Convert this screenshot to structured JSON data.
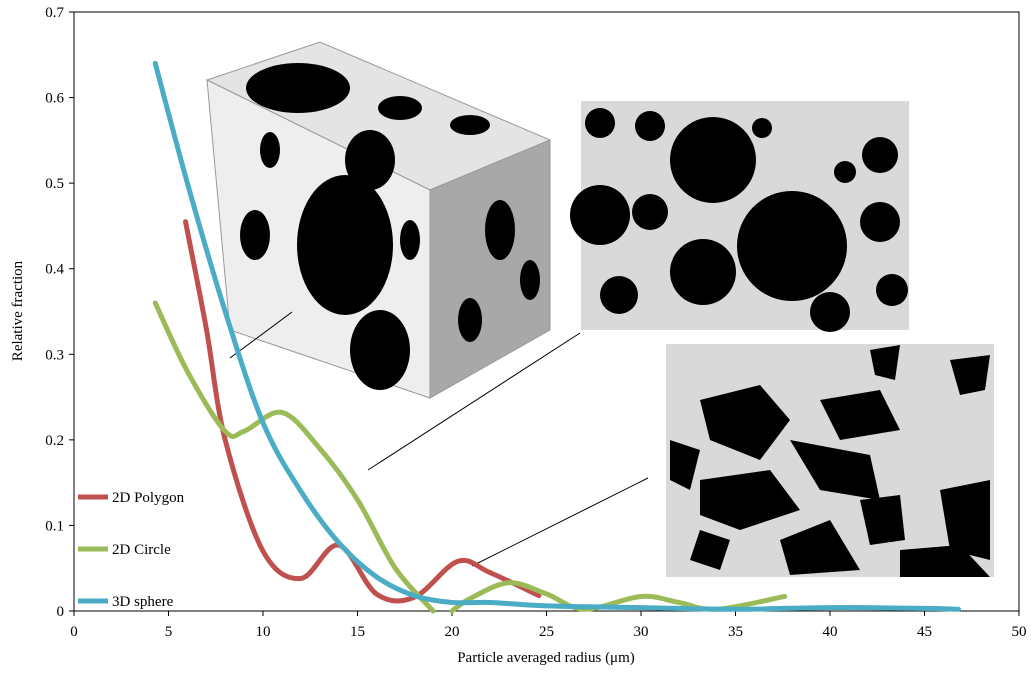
{
  "chart_data": {
    "type": "line",
    "x_label": "Particle averaged radius (μm)",
    "y_label": "Relative fraction",
    "xlim": [
      0,
      50
    ],
    "xticks": [
      0,
      5,
      10,
      15,
      20,
      25,
      30,
      35,
      40,
      45,
      50
    ],
    "ylim": [
      0,
      0.7
    ],
    "yticks": [
      0,
      0.1,
      0.2,
      0.3,
      0.4,
      0.5,
      0.6,
      0.7
    ],
    "legend": "lower left",
    "series": [
      {
        "name": "2D Polygon",
        "color": "#c0504d",
        "x": [
          5.9,
          7,
          8,
          10,
          12,
          14,
          16,
          18,
          20.3,
          22,
          24.6
        ],
        "values": [
          0.455,
          0.33,
          0.2,
          0.07,
          0.038,
          0.077,
          0.02,
          0.016,
          0.058,
          0.045,
          0.018
        ]
      },
      {
        "name": "2D Circle",
        "color": "#9bbb59",
        "x": [
          4.3,
          6,
          8,
          9,
          11,
          13,
          15,
          17,
          19,
          19.6,
          20,
          21,
          23,
          25,
          27,
          30,
          32,
          34,
          37.6
        ],
        "values": [
          0.36,
          0.28,
          0.21,
          0.21,
          0.232,
          0.19,
          0.13,
          0.05,
          0.0,
          null,
          0.0,
          0.015,
          0.033,
          0.02,
          0.002,
          0.017,
          0.01,
          0.002,
          0.017
        ]
      },
      {
        "name": "3D sphere",
        "color": "#4bacc6",
        "x": [
          4.3,
          6,
          8,
          10,
          12,
          14,
          16,
          18,
          20,
          22,
          25,
          30,
          35,
          40,
          45,
          46.8
        ],
        "values": [
          0.64,
          0.5,
          0.35,
          0.22,
          0.14,
          0.08,
          0.04,
          0.018,
          0.01,
          0.01,
          0.006,
          0.004,
          0.002,
          0.004,
          0.003,
          0.002
        ]
      }
    ]
  }
}
